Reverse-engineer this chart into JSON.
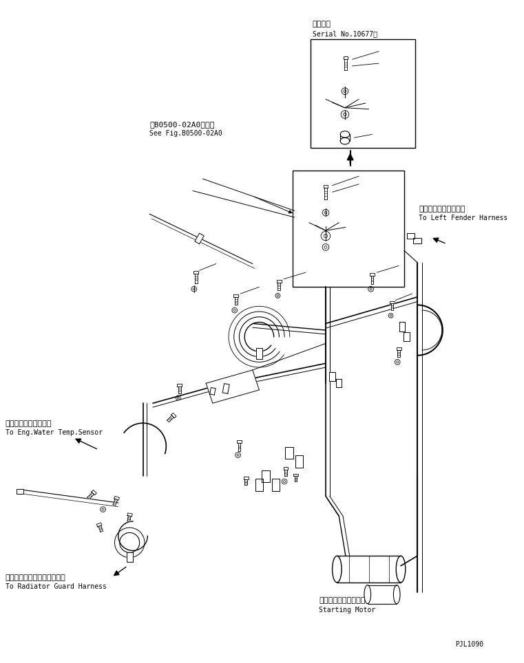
{
  "title_jp": "適用号機",
  "title_en": "Serial No.10677～",
  "label_fig_jp": "第B0500-02A0図参照",
  "label_fig_en": "See Fig.B0500-02A0",
  "label_left_fender_jp": "左フェンダハーネスへ",
  "label_left_fender_en": "To Left Fender Harness",
  "label_water_temp_jp": "エンジン水温センサへ",
  "label_water_temp_en": "To Eng.Water Temp.Sensor",
  "label_radiator_jp": "ラジエータガードハーネスへ",
  "label_radiator_en": "To Radiator Guard Harness",
  "label_starting_jp": "スターティングモータ",
  "label_starting_en": "Starting Motor",
  "label_pjl": "PJL1090",
  "bg_color": "#ffffff",
  "line_color": "#000000",
  "font_size_small": 7,
  "font_size_jp": 8
}
